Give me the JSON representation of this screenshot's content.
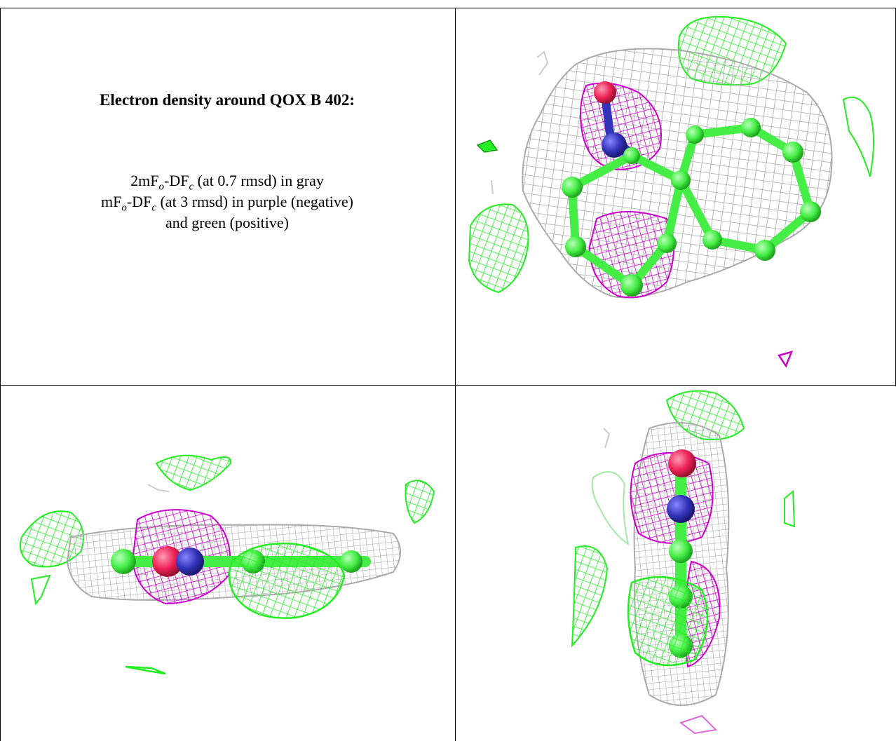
{
  "caption": {
    "title": "Electron density around QOX B 402:",
    "line1_pre": "2mF",
    "line1_sub1": "o",
    "line1_mid": "-DF",
    "line1_sub2": "c",
    "line1_post": " (at 0.7 rmsd) in gray",
    "line2_pre": "mF",
    "line2_sub1": "o",
    "line2_mid": "-DF",
    "line2_sub2": "c",
    "line2_post": " (at 3 rmsd) in purple (negative)",
    "line3": "and green (positive)"
  },
  "colors": {
    "gray_mesh": "#b8b8b8",
    "negative_mesh": "#cc00cc",
    "positive_mesh": "#22ee22",
    "carbon": "#44ee44",
    "oxygen": "#ee2255",
    "nitrogen": "#3333bb"
  },
  "panels": [
    {
      "name": "caption-panel"
    },
    {
      "name": "density-view-top"
    },
    {
      "name": "density-view-side"
    },
    {
      "name": "density-view-end"
    }
  ]
}
